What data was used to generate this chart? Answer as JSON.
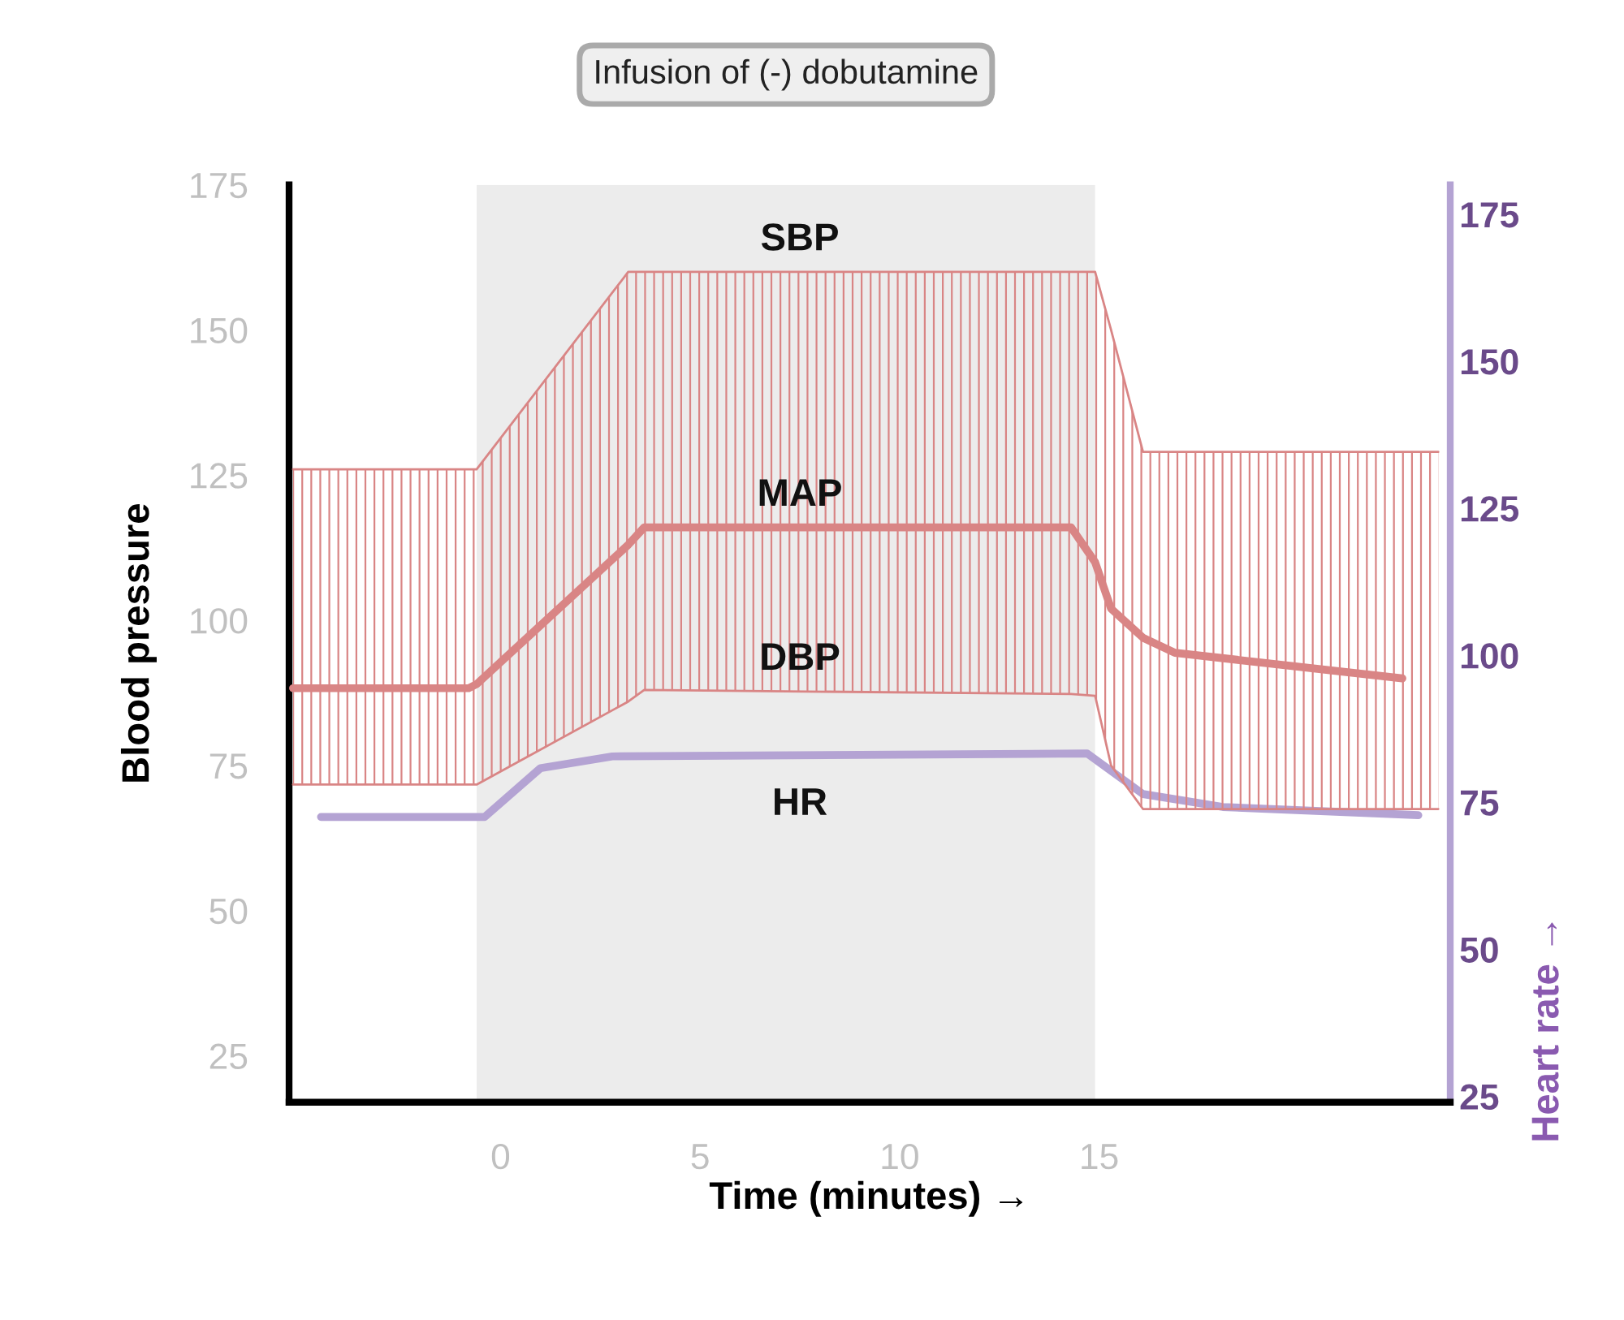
{
  "chart_data": {
    "type": "line",
    "xlabel": "Time (minutes) →",
    "ylabel": "Blood pressure",
    "y2label": "Heart rate →",
    "xlim": [
      -5.3,
      23.8
    ],
    "xticks": [
      0,
      5,
      10,
      15
    ],
    "ylim": [
      17,
      175
    ],
    "yticks": [
      25,
      50,
      75,
      100,
      125,
      150,
      175
    ],
    "y2lim": [
      24,
      180
    ],
    "y2ticks": [
      25,
      50,
      75,
      100,
      125,
      150,
      175
    ],
    "grid": false,
    "legend": false,
    "marker": "none",
    "line_style": "solid",
    "bands": [
      {
        "axis": "x",
        "from": -0.6,
        "to": 14.9,
        "label": "Infusion of (-) dobutamine",
        "color": "#ececec"
      }
    ],
    "series": [
      {
        "name": "SBP",
        "color": "#d98585",
        "x": [
          -5.2,
          -0.8,
          -0.6,
          3.2,
          3.6,
          14.3,
          14.9,
          15.3,
          16.1,
          16.9,
          22.6,
          23.5
        ],
        "values": [
          126,
          126,
          126,
          160,
          160,
          160,
          160,
          150,
          129,
          129,
          129,
          129
        ]
      },
      {
        "name": "MAP",
        "color": "#d98585",
        "x": [
          -5.2,
          -0.8,
          -0.6,
          3.2,
          3.6,
          14.3,
          14.9,
          15.3,
          16.1,
          16.9,
          22.6,
          23.5
        ],
        "values": [
          88.3,
          88.3,
          89,
          113,
          116,
          116,
          110,
          102,
          97,
          94.4,
          90,
          null
        ],
        "upper": [
          126,
          126,
          126,
          160,
          160,
          160,
          160,
          150,
          129,
          129,
          129,
          129
        ],
        "lower": [
          71.7,
          71.7,
          71.7,
          86,
          88,
          87.3,
          87,
          75,
          67.5,
          67.5,
          67.5,
          67.5
        ]
      },
      {
        "name": "DBP",
        "color": "#d98585",
        "x": [
          -5.2,
          -0.8,
          -0.6,
          3.2,
          3.6,
          14.3,
          14.9,
          15.3,
          16.1,
          16.9,
          22.6,
          23.5
        ],
        "values": [
          71.7,
          71.7,
          71.7,
          86,
          88,
          87.3,
          87,
          75,
          67.5,
          67.5,
          67.5,
          67.5
        ]
      },
      {
        "name": "HR",
        "color": "#b4a3d3",
        "axis": "y2",
        "x": [
          -4.5,
          -0.4,
          1.0,
          2.8,
          14.7,
          16.1,
          18.1,
          23.0
        ],
        "values": [
          72.5,
          72.5,
          80.8,
          82.8,
          83.3,
          76.4,
          74.2,
          72.8
        ]
      }
    ]
  }
}
